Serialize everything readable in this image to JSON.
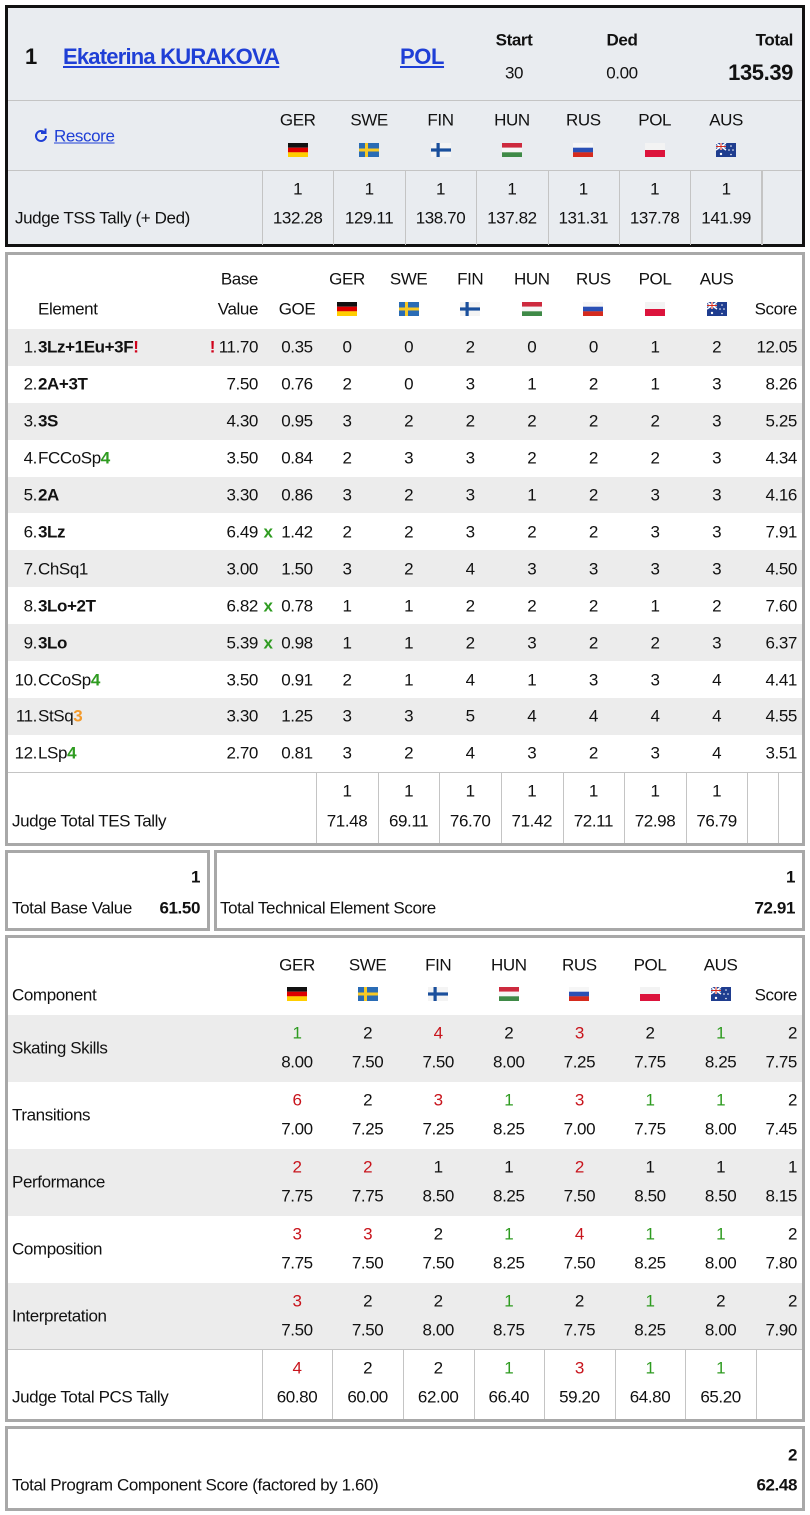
{
  "header": {
    "rank": 1,
    "name": "Ekaterina KURAKOVA",
    "nation": "POL",
    "start_label": "Start",
    "start": 30,
    "ded_label": "Ded",
    "ded": "0.00",
    "total_label": "Total",
    "total": "135.39",
    "rescore": "Rescore"
  },
  "judges": [
    "GER",
    "SWE",
    "FIN",
    "HUN",
    "RUS",
    "POL",
    "AUS"
  ],
  "tss_tally": {
    "label": "Judge TSS Tally (+ Ded)",
    "ranks": [
      1,
      1,
      1,
      1,
      1,
      1,
      1
    ],
    "scores": [
      "132.28",
      "129.11",
      "138.70",
      "137.82",
      "131.31",
      "137.78",
      "141.99"
    ]
  },
  "elements": {
    "headers": {
      "element": "Element",
      "base_top": "Base",
      "base_bottom": "Value",
      "goe": "GOE",
      "score": "Score"
    },
    "rows": [
      {
        "no": "1.",
        "name": "3Lz+1Eu+3F",
        "suffix": "!",
        "suffix_color": "#d0021b",
        "jump": true,
        "base_pre": "!",
        "base": "11.70",
        "goe": "0.35",
        "marks": [
          0,
          0,
          2,
          0,
          0,
          1,
          2
        ],
        "score": "12.05"
      },
      {
        "no": "2.",
        "name": "2A+3T",
        "jump": true,
        "base": "7.50",
        "goe": "0.76",
        "marks": [
          2,
          0,
          3,
          1,
          2,
          1,
          3
        ],
        "score": "8.26"
      },
      {
        "no": "3.",
        "name": "3S",
        "jump": true,
        "base": "4.30",
        "goe": "0.95",
        "marks": [
          3,
          2,
          2,
          2,
          2,
          2,
          3
        ],
        "score": "5.25"
      },
      {
        "no": "4.",
        "name": "FCCoSp",
        "suffix": "4",
        "suffix_color": "#2e9b20",
        "jump": false,
        "base": "3.50",
        "goe": "0.84",
        "marks": [
          2,
          3,
          3,
          2,
          2,
          2,
          3
        ],
        "score": "4.34"
      },
      {
        "no": "5.",
        "name": "2A",
        "jump": true,
        "base": "3.30",
        "goe": "0.86",
        "marks": [
          3,
          2,
          3,
          1,
          2,
          3,
          3
        ],
        "score": "4.16"
      },
      {
        "no": "6.",
        "name": "3Lz",
        "jump": true,
        "base": "6.49",
        "base_post": "x",
        "goe": "1.42",
        "marks": [
          2,
          2,
          3,
          2,
          2,
          3,
          3
        ],
        "score": "7.91"
      },
      {
        "no": "7.",
        "name": "ChSq1",
        "jump": false,
        "base": "3.00",
        "goe": "1.50",
        "marks": [
          3,
          2,
          4,
          3,
          3,
          3,
          3
        ],
        "score": "4.50"
      },
      {
        "no": "8.",
        "name": "3Lo+2T",
        "jump": true,
        "base": "6.82",
        "base_post": "x",
        "goe": "0.78",
        "marks": [
          1,
          1,
          2,
          2,
          2,
          1,
          2
        ],
        "score": "7.60"
      },
      {
        "no": "9.",
        "name": "3Lo",
        "jump": true,
        "base": "5.39",
        "base_post": "x",
        "goe": "0.98",
        "marks": [
          1,
          1,
          2,
          3,
          2,
          2,
          3
        ],
        "score": "6.37"
      },
      {
        "no": "10.",
        "name": "CCoSp",
        "suffix": "4",
        "suffix_color": "#2e9b20",
        "jump": false,
        "base": "3.50",
        "goe": "0.91",
        "marks": [
          2,
          1,
          4,
          1,
          3,
          3,
          4
        ],
        "score": "4.41"
      },
      {
        "no": "11.",
        "name": "StSq",
        "suffix": "3",
        "suffix_color": "#f39a2b",
        "jump": false,
        "base": "3.30",
        "goe": "1.25",
        "marks": [
          3,
          3,
          5,
          4,
          4,
          4,
          4
        ],
        "score": "4.55"
      },
      {
        "no": "12.",
        "name": "LSp",
        "suffix": "4",
        "suffix_color": "#2e9b20",
        "jump": false,
        "base": "2.70",
        "goe": "0.81",
        "marks": [
          3,
          2,
          4,
          3,
          2,
          3,
          4
        ],
        "score": "3.51"
      }
    ],
    "tally": {
      "label": "Judge Total TES Tally",
      "ranks": [
        1,
        1,
        1,
        1,
        1,
        1,
        1
      ],
      "scores": [
        "71.48",
        "69.11",
        "76.70",
        "71.42",
        "72.11",
        "72.98",
        "76.79"
      ]
    }
  },
  "tes": {
    "base_rank": 1,
    "base_label": "Total Base Value",
    "base_total": "61.50",
    "rank": 1,
    "label": "Total Technical Element Score",
    "total": "72.91"
  },
  "components": {
    "headers": {
      "component": "Component",
      "score": "Score"
    },
    "rows": [
      {
        "name": "Skating Skills",
        "ranks": [
          1,
          2,
          4,
          2,
          3,
          2,
          1
        ],
        "scores": [
          "8.00",
          "7.50",
          "7.50",
          "8.00",
          "7.25",
          "7.75",
          "8.25"
        ],
        "rank": 2,
        "score": "7.75"
      },
      {
        "name": "Transitions",
        "ranks": [
          6,
          2,
          3,
          1,
          3,
          1,
          1
        ],
        "scores": [
          "7.00",
          "7.25",
          "7.25",
          "8.25",
          "7.00",
          "7.75",
          "8.00"
        ],
        "rank": 2,
        "score": "7.45"
      },
      {
        "name": "Performance",
        "ranks": [
          2,
          2,
          1,
          1,
          2,
          1,
          1
        ],
        "scores": [
          "7.75",
          "7.75",
          "8.50",
          "8.25",
          "7.50",
          "8.50",
          "8.50"
        ],
        "rank": 1,
        "score": "8.15"
      },
      {
        "name": "Composition",
        "ranks": [
          3,
          3,
          2,
          1,
          4,
          1,
          1
        ],
        "scores": [
          "7.75",
          "7.50",
          "7.50",
          "8.25",
          "7.50",
          "8.25",
          "8.00"
        ],
        "rank": 2,
        "score": "7.80"
      },
      {
        "name": "Interpretation",
        "ranks": [
          3,
          2,
          2,
          1,
          2,
          1,
          2
        ],
        "scores": [
          "7.50",
          "7.50",
          "8.00",
          "8.75",
          "7.75",
          "8.25",
          "8.00"
        ],
        "rank": 2,
        "score": "7.90"
      }
    ],
    "tally": {
      "label": "Judge Total PCS Tally",
      "ranks": [
        4,
        2,
        2,
        1,
        3,
        1,
        1
      ],
      "scores": [
        "60.80",
        "60.00",
        "62.00",
        "66.40",
        "59.20",
        "64.80",
        "65.20"
      ]
    }
  },
  "pcs": {
    "rank": 2,
    "label": "Total Program Component Score (factored by 1.60)",
    "total": "62.48"
  },
  "colors": {
    "link": "#1f3fd6",
    "better": "#2e9b20",
    "worse": "#c8141c",
    "text": "#111111",
    "base_post": "#2e9b20",
    "base_pre": "#d0021b"
  }
}
